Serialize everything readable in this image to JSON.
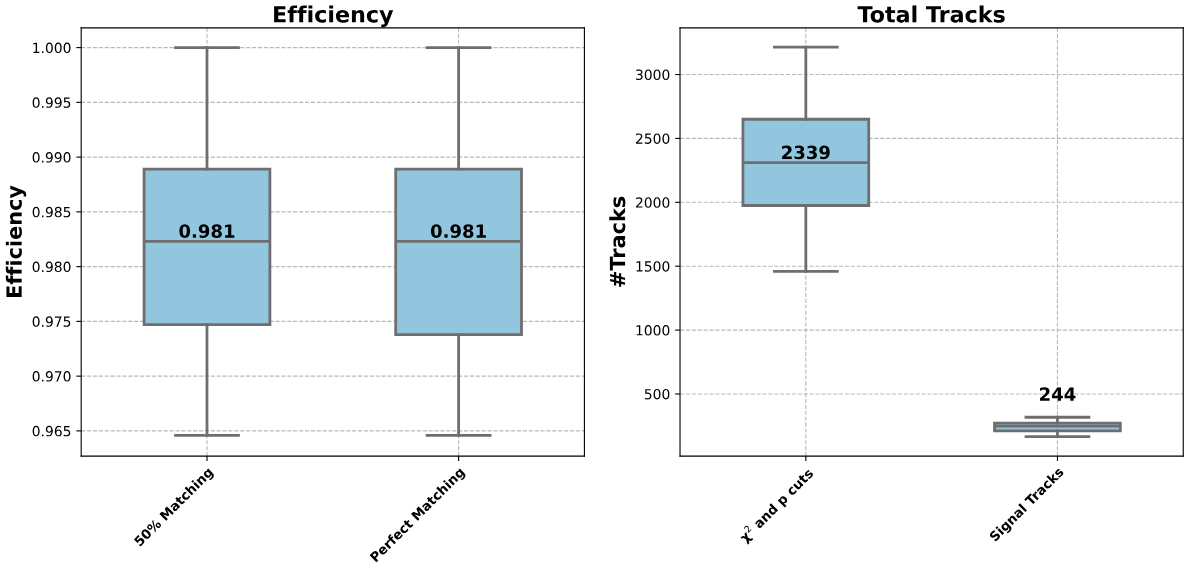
{
  "chart_data": [
    {
      "type": "box",
      "title": "Efficiency",
      "ylabel": "Efficiency",
      "categories": [
        "50% Matching",
        "Perfect Matching"
      ],
      "color": "#92c6df",
      "boxes": [
        {
          "low": 0.9646,
          "q1": 0.9747,
          "median": 0.9823,
          "q3": 0.9889,
          "high": 1.0
        },
        {
          "low": 0.9646,
          "q1": 0.9738,
          "median": 0.9823,
          "q3": 0.9889,
          "high": 1.0
        }
      ],
      "value_labels": [
        "0.981",
        "0.981"
      ],
      "ylim": [
        0.9627,
        1.0018
      ],
      "yticks": [
        {
          "value": 0.965,
          "label": "0.965"
        },
        {
          "value": 0.97,
          "label": "0.970"
        },
        {
          "value": 0.975,
          "label": "0.975"
        },
        {
          "value": 0.98,
          "label": "0.980"
        },
        {
          "value": 0.985,
          "label": "0.985"
        },
        {
          "value": 0.99,
          "label": "0.990"
        },
        {
          "value": 0.995,
          "label": "0.995"
        },
        {
          "value": 1.0,
          "label": "1.000"
        }
      ],
      "grid": true
    },
    {
      "type": "box",
      "title": "Total Tracks",
      "ylabel": "#Tracks",
      "categories": [
        "χ$^{2}$ and p cuts",
        "Signal Tracks"
      ],
      "color": "#92c6df",
      "boxes": [
        {
          "low": 1460,
          "q1": 1975,
          "median": 2310,
          "q3": 2650,
          "high": 3215
        },
        {
          "low": 166,
          "q1": 211,
          "median": 249,
          "q3": 272,
          "high": 318
        }
      ],
      "value_labels": [
        "2339",
        "244"
      ],
      "ylim": [
        14,
        3365
      ],
      "yticks": [
        500,
        1000,
        1500,
        2000,
        2500,
        3000
      ],
      "grid": true
    }
  ]
}
